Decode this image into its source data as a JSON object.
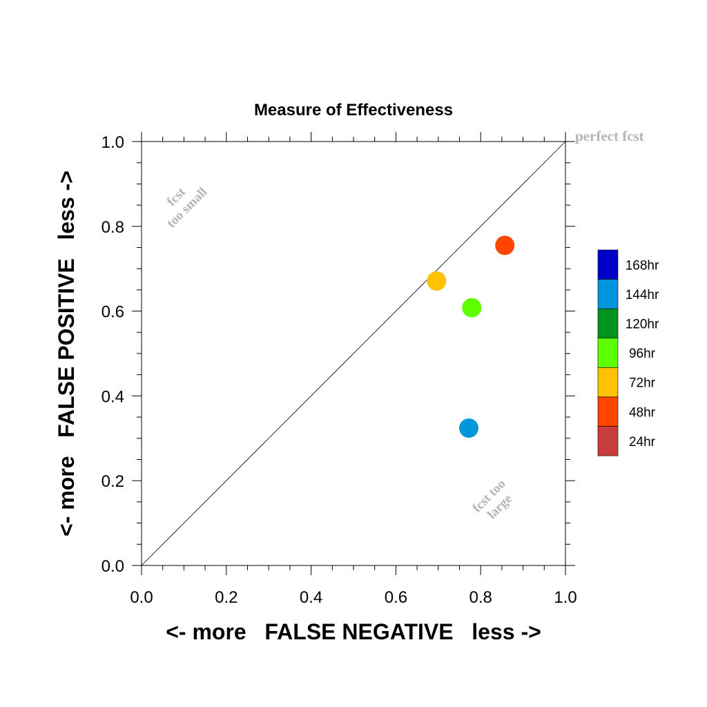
{
  "chart_data": {
    "type": "scatter",
    "title": "Measure of Effectiveness",
    "xlabel": "<- more   FALSE NEGATIVE   less ->",
    "ylabel": "<- more   FALSE POSITIVE   less ->",
    "xlim": [
      0.0,
      1.0
    ],
    "ylim": [
      0.0,
      1.0
    ],
    "x_ticks": [
      "0.0",
      "0.2",
      "0.4",
      "0.6",
      "0.8",
      "1.0"
    ],
    "y_ticks": [
      "0.0",
      "0.2",
      "0.4",
      "0.6",
      "0.8",
      "1.0"
    ],
    "grid": false,
    "diagonal_line": true,
    "annotations": {
      "perfect": "perfect fcst",
      "too_small_line1": "fcst",
      "too_small_line2": "too small",
      "too_large_line1": "fcst too",
      "too_large_line2": "large"
    },
    "points": [
      {
        "label": "48hr",
        "x": 0.857,
        "y": 0.755,
        "color": "#ff4500"
      },
      {
        "label": "72hr",
        "x": 0.696,
        "y": 0.671,
        "color": "#ffc200"
      },
      {
        "label": "96hr",
        "x": 0.779,
        "y": 0.608,
        "color": "#5dff00"
      },
      {
        "label": "144hr",
        "x": 0.772,
        "y": 0.324,
        "color": "#0096dc"
      }
    ],
    "legend": {
      "placement": "right",
      "entries": [
        {
          "label": "168hr",
          "color": "#0000c8"
        },
        {
          "label": "144hr",
          "color": "#0096dc"
        },
        {
          "label": "120hr",
          "color": "#00961e"
        },
        {
          "label": "96hr",
          "color": "#5dff00"
        },
        {
          "label": "72hr",
          "color": "#ffc200"
        },
        {
          "label": "48hr",
          "color": "#ff4500"
        },
        {
          "label": "24hr",
          "color": "#c83c3c"
        }
      ]
    },
    "annotation_color": "#b4b4b4"
  }
}
